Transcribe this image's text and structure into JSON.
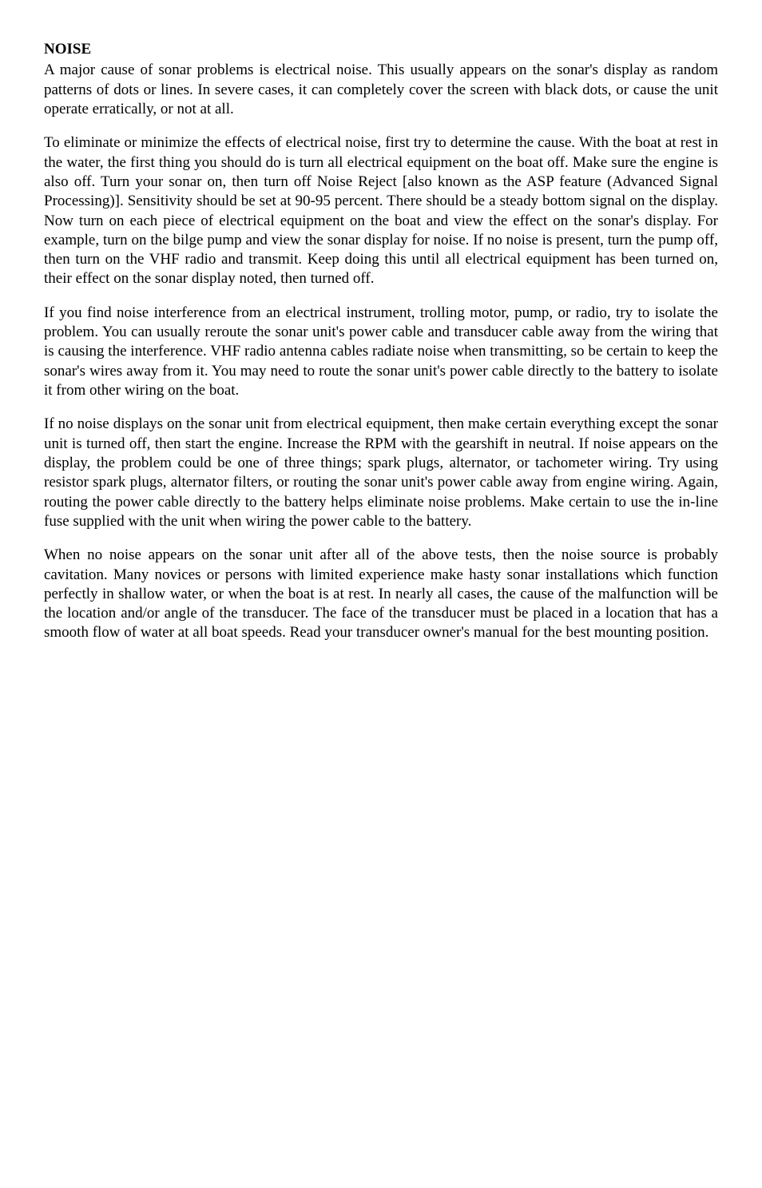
{
  "heading": "NOISE",
  "paragraphs": [
    "A major cause of sonar problems is electrical noise. This usually appears on the sonar's display as random patterns of dots or lines. In severe cases, it can completely cover the screen with black dots, or cause the unit operate erratically, or not at all.",
    "To eliminate or minimize the effects of electrical noise, first try to determine the cause. With the boat at rest in the water, the first thing you should do is turn all electrical equipment on the boat off. Make sure the engine is also off. Turn your sonar on, then turn off Noise Reject [also known as the ASP feature (Advanced Signal Processing)]. Sensitivity should be set at 90-95 percent. There should be a steady bottom signal on the display. Now turn on each piece of electrical equipment on the boat and view the effect on the sonar's display. For example, turn on the bilge pump and view the sonar display for noise. If no noise is present, turn the pump off, then turn on the VHF radio and transmit. Keep doing this until all electrical equipment has been turned on, their effect on the sonar display noted, then turned off.",
    "If you find noise interference from an electrical instrument, trolling motor, pump, or radio, try to isolate the problem. You can usually reroute the sonar unit's power cable and transducer cable away from the wiring that is causing the interference. VHF radio antenna cables radiate noise when transmitting, so be certain to keep the sonar's wires away from it. You may need to route the sonar unit's power cable directly to the battery to isolate it from other wiring on the boat.",
    "If no noise displays on the sonar unit from electrical equipment, then make certain everything except the sonar unit is turned off, then start the engine. Increase the RPM with the gearshift in neutral. If noise appears on the display, the problem could be one of three things; spark plugs, alternator, or tachometer wiring. Try using resistor spark plugs, alternator filters, or routing the sonar unit's power cable away from engine wiring. Again, routing the power cable directly to the battery helps eliminate noise problems. Make certain to use the in-line fuse supplied with the unit when wiring the power cable to the battery.",
    "When no noise appears on the sonar unit after all of the above tests, then the noise source is probably cavitation. Many novices or persons with limited experience make hasty sonar installations which function perfectly in shallow water, or when the boat is at rest. In nearly all cases, the cause of the malfunction will be the location and/or angle of the transducer. The face of the transducer must be placed in a location that has a smooth flow of water at all boat speeds. Read your transducer owner's manual for the best mounting position."
  ]
}
